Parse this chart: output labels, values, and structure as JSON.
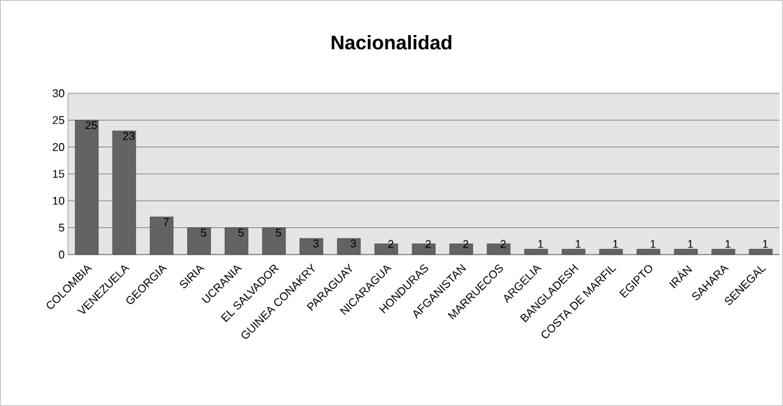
{
  "chart_data": {
    "type": "bar",
    "title": "Nacionalidad",
    "categories": [
      "COLOMBIA",
      "VENEZUELA",
      "GEORGIA",
      "SIRIA",
      "UCRANIA",
      "EL SALVADOR",
      "GUINEA CONAKRY",
      "PARAGUAY",
      "NICARAGUA",
      "HONDURAS",
      "AFGANISTAN",
      "MARRUECOS",
      "ARGELIA",
      "BANGLADESH",
      "COSTA DE MARFIL",
      "EGIPTO",
      "IRÁN",
      "SAHARA",
      "SENEGAL"
    ],
    "values": [
      25,
      23,
      7,
      5,
      5,
      5,
      3,
      3,
      2,
      2,
      2,
      2,
      1,
      1,
      1,
      1,
      1,
      1,
      1
    ],
    "color": "#636363",
    "ylim": [
      0,
      30
    ],
    "yticks": [
      0,
      5,
      10,
      15,
      20,
      25,
      30
    ],
    "grid": "y",
    "data_labels": true
  }
}
